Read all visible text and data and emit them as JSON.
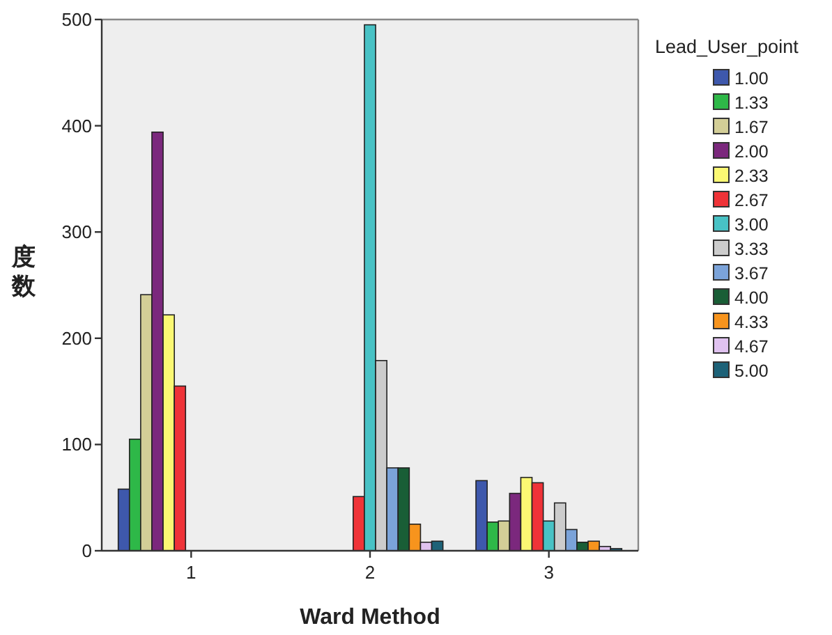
{
  "chart_data": {
    "type": "bar",
    "xlabel": "Ward Method",
    "ylabel": "度数",
    "legend_title": "Lead_User_point",
    "legend": "right",
    "categories": [
      "1",
      "2",
      "3"
    ],
    "ylim": [
      0,
      500
    ],
    "yticks": [
      0,
      100,
      200,
      300,
      400,
      500
    ],
    "series": [
      {
        "name": "1.00",
        "color": "#3e58ac",
        "values": [
          58,
          null,
          66
        ]
      },
      {
        "name": "1.33",
        "color": "#2eb848",
        "values": [
          105,
          null,
          27
        ]
      },
      {
        "name": "1.67",
        "color": "#d3ce97",
        "values": [
          241,
          null,
          28
        ]
      },
      {
        "name": "2.00",
        "color": "#7b287d",
        "values": [
          394,
          null,
          54
        ]
      },
      {
        "name": "2.33",
        "color": "#fbf873",
        "values": [
          222,
          null,
          69
        ]
      },
      {
        "name": "2.67",
        "color": "#ef3338",
        "values": [
          155,
          51,
          64
        ]
      },
      {
        "name": "3.00",
        "color": "#48c2c5",
        "values": [
          null,
          495,
          28
        ]
      },
      {
        "name": "3.33",
        "color": "#cccccc",
        "values": [
          null,
          179,
          45
        ]
      },
      {
        "name": "3.67",
        "color": "#7ba3d9",
        "values": [
          null,
          78,
          20
        ]
      },
      {
        "name": "4.00",
        "color": "#195e36",
        "values": [
          null,
          78,
          8
        ]
      },
      {
        "name": "4.33",
        "color": "#f7941d",
        "values": [
          null,
          25,
          9
        ]
      },
      {
        "name": "4.67",
        "color": "#e0c2f0",
        "values": [
          null,
          8,
          4
        ]
      },
      {
        "name": "5.00",
        "color": "#1d6278",
        "values": [
          null,
          9,
          2
        ]
      }
    ]
  }
}
